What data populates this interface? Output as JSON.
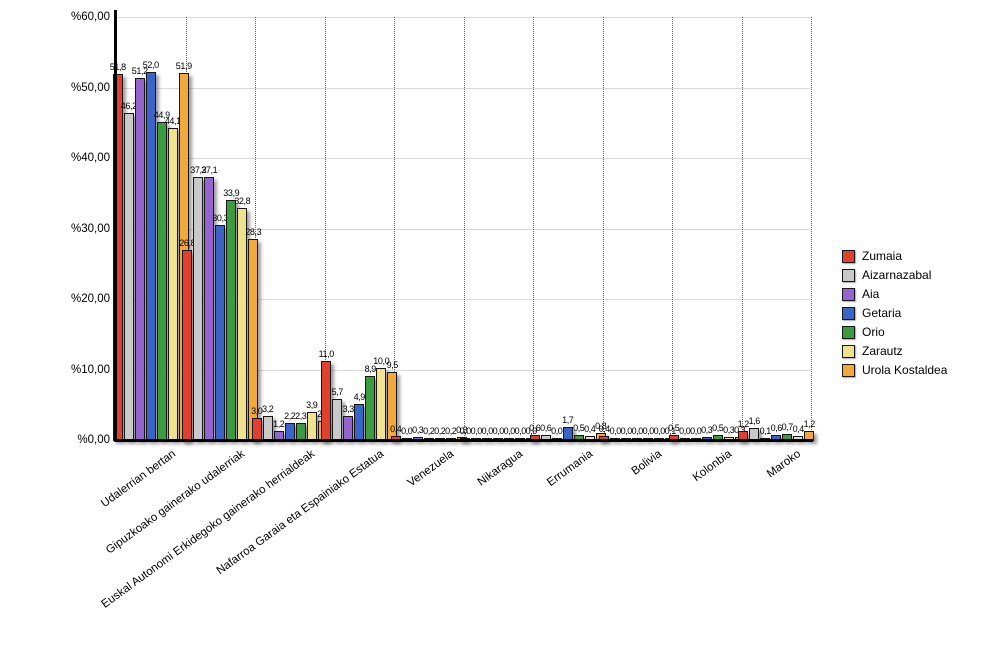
{
  "chart_data": {
    "type": "bar",
    "title": "",
    "categories": [
      "Udalerrian bertan",
      "Gipuzkoako gainerako udalerriak",
      "Euskal Autonomi Erkidegoko gainerako herrialdeak",
      "Nafarroa Garaia eta Espainiako Estatua",
      "Venezuela",
      "Nikaragua",
      "Errumania",
      "Bolivia",
      "Kolonbia",
      "Maroko"
    ],
    "series": [
      {
        "name": "Zumaia",
        "color": "#e0412f",
        "values": [
          51.8,
          26.8,
          3.0,
          11.0,
          0.4,
          0.0,
          0.6,
          0.4,
          0.5,
          1.2
        ]
      },
      {
        "name": "Aizarnazabal",
        "color": "#c9c9c9",
        "values": [
          46.2,
          37.2,
          3.2,
          5.7,
          0.0,
          0.0,
          0.6,
          0.0,
          0.0,
          1.6
        ]
      },
      {
        "name": "Aia",
        "color": "#9465cf",
        "values": [
          51.2,
          37.1,
          1.2,
          3.3,
          0.3,
          0.0,
          0.0,
          0.0,
          0.0,
          0.1
        ]
      },
      {
        "name": "Getaria",
        "color": "#3a64c8",
        "values": [
          52.0,
          30.3,
          2.2,
          4.9,
          0.2,
          0.0,
          1.7,
          0.0,
          0.3,
          0.6
        ]
      },
      {
        "name": "Orio",
        "color": "#3c9b41",
        "values": [
          44.9,
          33.9,
          2.3,
          8.9,
          0.2,
          0.0,
          0.5,
          0.0,
          0.5,
          0.7
        ]
      },
      {
        "name": "Zarautz",
        "color": "#efe18e",
        "values": [
          44.1,
          32.8,
          3.9,
          10.0,
          0.2,
          0.0,
          0.4,
          0.0,
          0.3,
          0.4
        ]
      },
      {
        "name": "Urola Kostaldea",
        "color": "#f2a93b",
        "values": [
          51.9,
          28.3,
          2.6,
          9.5,
          0.3,
          0.0,
          0.8,
          0.1,
          0.3,
          1.2
        ]
      }
    ],
    "y_axis": {
      "min": 0,
      "max": 60,
      "tick_step": 10,
      "tick_labels": [
        "%0,00",
        "%10,00",
        "%20,00",
        "%30,00",
        "%40,00",
        "%50,00",
        "%60,00"
      ]
    },
    "value_labels": {
      "visible": true,
      "decimal_separator": ","
    },
    "legend_position": "right",
    "grid": {
      "horizontal": true,
      "vertical_dotted": true
    },
    "colors": {
      "background": "#ffffff",
      "axis": "#000000",
      "gridline": "#d9d9d9",
      "vertical_gridline": "#666666",
      "text": "#000000"
    }
  }
}
